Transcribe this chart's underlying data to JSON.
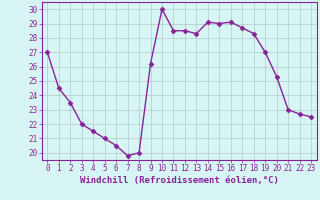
{
  "x": [
    0,
    1,
    2,
    3,
    4,
    5,
    6,
    7,
    8,
    9,
    10,
    11,
    12,
    13,
    14,
    15,
    16,
    17,
    18,
    19,
    20,
    21,
    22,
    23
  ],
  "y": [
    27,
    24.5,
    23.5,
    22,
    21.5,
    21,
    20.5,
    19.8,
    20,
    26.2,
    30,
    28.5,
    28.5,
    28.3,
    29.1,
    29,
    29.1,
    28.7,
    28.3,
    27,
    25.3,
    23,
    22.7,
    22.5
  ],
  "line_color": "#882299",
  "marker": "D",
  "markersize": 2.5,
  "linewidth": 1.0,
  "bg_color": "#d8f5f5",
  "grid_color": "#b0c8c8",
  "xlabel": "Windchill (Refroidissement éolien,°C)",
  "xlabel_fontsize": 6.5,
  "xlabel_color": "#882299",
  "yticks": [
    20,
    21,
    22,
    23,
    24,
    25,
    26,
    27,
    28,
    29,
    30
  ],
  "xticks": [
    0,
    1,
    2,
    3,
    4,
    5,
    6,
    7,
    8,
    9,
    10,
    11,
    12,
    13,
    14,
    15,
    16,
    17,
    18,
    19,
    20,
    21,
    22,
    23
  ],
  "ylim": [
    19.5,
    30.5
  ],
  "xlim": [
    -0.5,
    23.5
  ],
  "tick_fontsize": 5.5,
  "tick_color": "#882299",
  "border_color": "#882299"
}
